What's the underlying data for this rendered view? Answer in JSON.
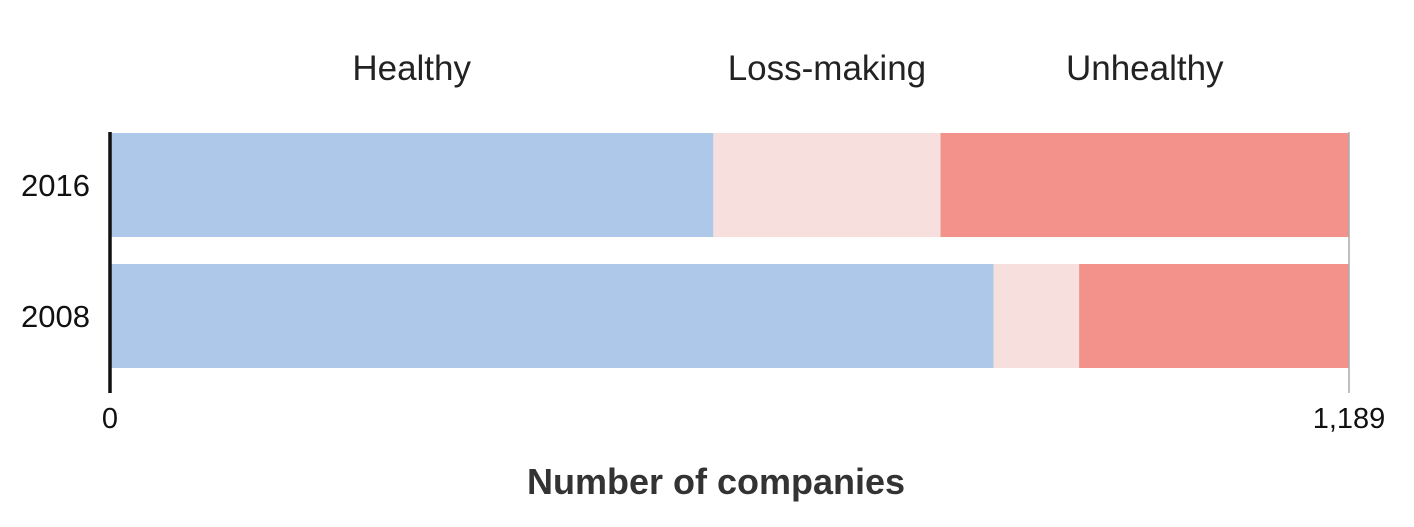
{
  "chart_data": {
    "type": "bar",
    "orientation": "horizontal",
    "stacked": true,
    "categories": [
      "2016",
      "2008"
    ],
    "series": [
      {
        "name": "Healthy",
        "values": [
          579,
          848
        ]
      },
      {
        "name": "Loss-making",
        "values": [
          218,
          82
        ]
      },
      {
        "name": "Unhealthy",
        "values": [
          392,
          259
        ]
      }
    ],
    "xlabel": "Number of companies",
    "ylabel": "",
    "xlim": [
      0,
      1189
    ],
    "x_ticks": [
      "0",
      "1,189"
    ],
    "grid": false,
    "legend_position": "top",
    "colors": [
      "#adc8e8",
      "#f6dfdd",
      "#f3928a"
    ]
  }
}
